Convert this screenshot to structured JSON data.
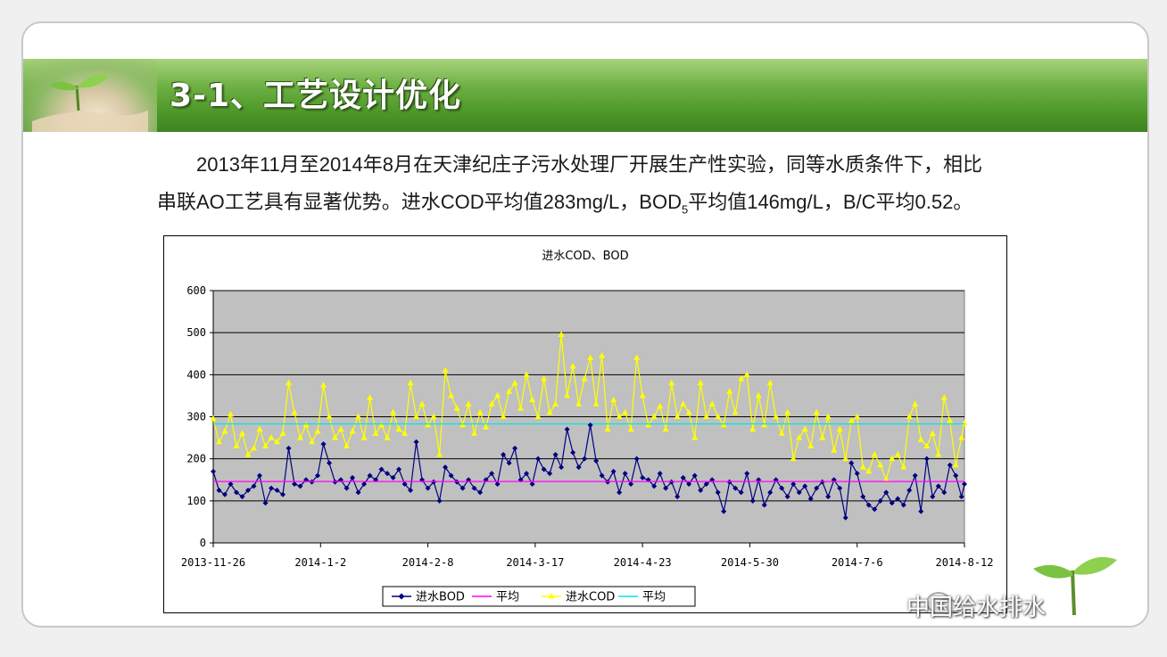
{
  "slide": {
    "title": "3-1、工艺设计优化",
    "paragraph_line1": "2013年11月至2014年8月在天津纪庄子污水处理厂开展生产性实验，同等水质条件下，相比",
    "paragraph_line2_a": "串联AO工艺具有显著优势。进水COD平均值283mg/L，BOD",
    "paragraph_line2_sub": "5",
    "paragraph_line2_b": "平均值146mg/L，B/C平均0.52。",
    "watermark": "中国给水排水"
  },
  "colors": {
    "banner": "#4f9a2a",
    "plot_bg": "#c0c0c0",
    "bod": "#000080",
    "bod_avg": "#ff00ff",
    "cod": "#ffff00",
    "cod_avg": "#00e5e5"
  },
  "chart_data": {
    "type": "line",
    "title": "进水COD、BOD",
    "xlabel": "",
    "ylabel": "",
    "ylim": [
      0,
      600
    ],
    "yticks": [
      "0",
      "100",
      "200",
      "300",
      "400",
      "500",
      "600"
    ],
    "x_tick_labels": [
      "2013-11-26",
      "2014-1-2",
      "2014-2-8",
      "2014-3-17",
      "2014-4-23",
      "2014-5-30",
      "2014-7-6",
      "2014-8-12"
    ],
    "x_start": "2013-11-26",
    "x_end": "2014-8-12",
    "grid": true,
    "legend": "bottom",
    "series": [
      {
        "name": "进水BOD",
        "marker": "diamond",
        "color": "#000080",
        "points": [
          [
            "2013-11-26",
            170
          ],
          [
            "2013-11-28",
            125
          ],
          [
            "2013-11-30",
            115
          ],
          [
            "2013-12-2",
            140
          ],
          [
            "2013-12-4",
            120
          ],
          [
            "2013-12-6",
            110
          ],
          [
            "2013-12-8",
            125
          ],
          [
            "2013-12-10",
            135
          ],
          [
            "2013-12-12",
            160
          ],
          [
            "2013-12-14",
            95
          ],
          [
            "2013-12-16",
            130
          ],
          [
            "2013-12-18",
            125
          ],
          [
            "2013-12-20",
            115
          ],
          [
            "2013-12-22",
            225
          ],
          [
            "2013-12-24",
            140
          ],
          [
            "2013-12-26",
            135
          ],
          [
            "2013-12-28",
            150
          ],
          [
            "2013-12-30",
            145
          ],
          [
            "2014-1-1",
            160
          ],
          [
            "2014-1-3",
            235
          ],
          [
            "2014-1-5",
            190
          ],
          [
            "2014-1-7",
            145
          ],
          [
            "2014-1-9",
            150
          ],
          [
            "2014-1-11",
            130
          ],
          [
            "2014-1-13",
            155
          ],
          [
            "2014-1-15",
            120
          ],
          [
            "2014-1-17",
            140
          ],
          [
            "2014-1-19",
            160
          ],
          [
            "2014-1-21",
            150
          ],
          [
            "2014-1-23",
            175
          ],
          [
            "2014-1-25",
            165
          ],
          [
            "2014-1-27",
            155
          ],
          [
            "2014-1-29",
            175
          ],
          [
            "2014-1-31",
            140
          ],
          [
            "2014-2-2",
            125
          ],
          [
            "2014-2-4",
            240
          ],
          [
            "2014-2-6",
            150
          ],
          [
            "2014-2-8",
            130
          ],
          [
            "2014-2-10",
            145
          ],
          [
            "2014-2-12",
            100
          ],
          [
            "2014-2-14",
            180
          ],
          [
            "2014-2-16",
            160
          ],
          [
            "2014-2-18",
            145
          ],
          [
            "2014-2-20",
            130
          ],
          [
            "2014-2-22",
            150
          ],
          [
            "2014-2-24",
            130
          ],
          [
            "2014-2-26",
            120
          ],
          [
            "2014-2-28",
            150
          ],
          [
            "2014-3-2",
            165
          ],
          [
            "2014-3-4",
            140
          ],
          [
            "2014-3-6",
            210
          ],
          [
            "2014-3-8",
            190
          ],
          [
            "2014-3-10",
            225
          ],
          [
            "2014-3-12",
            150
          ],
          [
            "2014-3-14",
            165
          ],
          [
            "2014-3-16",
            140
          ],
          [
            "2014-3-18",
            200
          ],
          [
            "2014-3-20",
            175
          ],
          [
            "2014-3-22",
            165
          ],
          [
            "2014-3-24",
            210
          ],
          [
            "2014-3-26",
            180
          ],
          [
            "2014-3-28",
            270
          ],
          [
            "2014-3-30",
            215
          ],
          [
            "2014-4-1",
            180
          ],
          [
            "2014-4-3",
            200
          ],
          [
            "2014-4-5",
            280
          ],
          [
            "2014-4-7",
            195
          ],
          [
            "2014-4-9",
            160
          ],
          [
            "2014-4-11",
            145
          ],
          [
            "2014-4-13",
            170
          ],
          [
            "2014-4-15",
            120
          ],
          [
            "2014-4-17",
            165
          ],
          [
            "2014-4-19",
            140
          ],
          [
            "2014-4-21",
            200
          ],
          [
            "2014-4-23",
            155
          ],
          [
            "2014-4-25",
            150
          ],
          [
            "2014-4-27",
            135
          ],
          [
            "2014-4-29",
            165
          ],
          [
            "2014-5-1",
            130
          ],
          [
            "2014-5-3",
            145
          ],
          [
            "2014-5-5",
            110
          ],
          [
            "2014-5-7",
            155
          ],
          [
            "2014-5-9",
            140
          ],
          [
            "2014-5-11",
            160
          ],
          [
            "2014-5-13",
            125
          ],
          [
            "2014-5-15",
            140
          ],
          [
            "2014-5-17",
            150
          ],
          [
            "2014-5-19",
            120
          ],
          [
            "2014-5-21",
            75
          ],
          [
            "2014-5-23",
            145
          ],
          [
            "2014-5-25",
            130
          ],
          [
            "2014-5-27",
            120
          ],
          [
            "2014-5-29",
            165
          ],
          [
            "2014-5-31",
            100
          ],
          [
            "2014-6-2",
            150
          ],
          [
            "2014-6-4",
            90
          ],
          [
            "2014-6-6",
            120
          ],
          [
            "2014-6-8",
            150
          ],
          [
            "2014-6-10",
            130
          ],
          [
            "2014-6-12",
            110
          ],
          [
            "2014-6-14",
            140
          ],
          [
            "2014-6-16",
            120
          ],
          [
            "2014-6-18",
            135
          ],
          [
            "2014-6-20",
            105
          ],
          [
            "2014-6-22",
            130
          ],
          [
            "2014-6-24",
            145
          ],
          [
            "2014-6-26",
            110
          ],
          [
            "2014-6-28",
            150
          ],
          [
            "2014-6-30",
            130
          ],
          [
            "2014-7-2",
            60
          ],
          [
            "2014-7-4",
            190
          ],
          [
            "2014-7-6",
            165
          ],
          [
            "2014-7-8",
            110
          ],
          [
            "2014-7-10",
            90
          ],
          [
            "2014-7-12",
            80
          ],
          [
            "2014-7-14",
            100
          ],
          [
            "2014-7-16",
            120
          ],
          [
            "2014-7-18",
            95
          ],
          [
            "2014-7-20",
            105
          ],
          [
            "2014-7-22",
            90
          ],
          [
            "2014-7-24",
            125
          ],
          [
            "2014-7-26",
            160
          ],
          [
            "2014-7-28",
            75
          ],
          [
            "2014-7-30",
            200
          ],
          [
            "2014-8-1",
            110
          ],
          [
            "2014-8-3",
            135
          ],
          [
            "2014-8-5",
            120
          ],
          [
            "2014-8-7",
            185
          ],
          [
            "2014-8-9",
            160
          ],
          [
            "2014-8-11",
            110
          ],
          [
            "2014-8-12",
            140
          ]
        ]
      },
      {
        "name": "平均",
        "color": "#ff00ff",
        "points": [
          [
            "2013-11-26",
            146
          ],
          [
            "2014-8-12",
            146
          ]
        ]
      },
      {
        "name": "进水COD",
        "marker": "triangle",
        "color": "#ffff00",
        "points": [
          [
            "2013-11-26",
            295
          ],
          [
            "2013-11-28",
            240
          ],
          [
            "2013-11-30",
            265
          ],
          [
            "2013-12-2",
            305
          ],
          [
            "2013-12-4",
            230
          ],
          [
            "2013-12-6",
            260
          ],
          [
            "2013-12-8",
            210
          ],
          [
            "2013-12-10",
            225
          ],
          [
            "2013-12-12",
            270
          ],
          [
            "2013-12-14",
            230
          ],
          [
            "2013-12-16",
            250
          ],
          [
            "2013-12-18",
            240
          ],
          [
            "2013-12-20",
            260
          ],
          [
            "2013-12-22",
            380
          ],
          [
            "2013-12-24",
            310
          ],
          [
            "2013-12-26",
            250
          ],
          [
            "2013-12-28",
            280
          ],
          [
            "2013-12-30",
            240
          ],
          [
            "2014-1-1",
            265
          ],
          [
            "2014-1-3",
            375
          ],
          [
            "2014-1-5",
            300
          ],
          [
            "2014-1-7",
            250
          ],
          [
            "2014-1-9",
            270
          ],
          [
            "2014-1-11",
            230
          ],
          [
            "2014-1-13",
            265
          ],
          [
            "2014-1-15",
            300
          ],
          [
            "2014-1-17",
            250
          ],
          [
            "2014-1-19",
            345
          ],
          [
            "2014-1-21",
            260
          ],
          [
            "2014-1-23",
            280
          ],
          [
            "2014-1-25",
            250
          ],
          [
            "2014-1-27",
            310
          ],
          [
            "2014-1-29",
            270
          ],
          [
            "2014-1-31",
            260
          ],
          [
            "2014-2-2",
            380
          ],
          [
            "2014-2-4",
            300
          ],
          [
            "2014-2-6",
            330
          ],
          [
            "2014-2-8",
            280
          ],
          [
            "2014-2-10",
            300
          ],
          [
            "2014-2-12",
            210
          ],
          [
            "2014-2-14",
            410
          ],
          [
            "2014-2-16",
            350
          ],
          [
            "2014-2-18",
            320
          ],
          [
            "2014-2-20",
            280
          ],
          [
            "2014-2-22",
            330
          ],
          [
            "2014-2-24",
            260
          ],
          [
            "2014-2-26",
            310
          ],
          [
            "2014-2-28",
            275
          ],
          [
            "2014-3-2",
            330
          ],
          [
            "2014-3-4",
            350
          ],
          [
            "2014-3-6",
            300
          ],
          [
            "2014-3-8",
            360
          ],
          [
            "2014-3-10",
            380
          ],
          [
            "2014-3-12",
            320
          ],
          [
            "2014-3-14",
            400
          ],
          [
            "2014-3-16",
            340
          ],
          [
            "2014-3-18",
            300
          ],
          [
            "2014-3-20",
            390
          ],
          [
            "2014-3-22",
            310
          ],
          [
            "2014-3-24",
            330
          ],
          [
            "2014-3-26",
            495
          ],
          [
            "2014-3-28",
            350
          ],
          [
            "2014-3-30",
            420
          ],
          [
            "2014-4-1",
            330
          ],
          [
            "2014-4-3",
            390
          ],
          [
            "2014-4-5",
            440
          ],
          [
            "2014-4-7",
            330
          ],
          [
            "2014-4-9",
            445
          ],
          [
            "2014-4-11",
            270
          ],
          [
            "2014-4-13",
            340
          ],
          [
            "2014-4-15",
            300
          ],
          [
            "2014-4-17",
            310
          ],
          [
            "2014-4-19",
            270
          ],
          [
            "2014-4-21",
            440
          ],
          [
            "2014-4-23",
            350
          ],
          [
            "2014-4-25",
            280
          ],
          [
            "2014-4-27",
            300
          ],
          [
            "2014-4-29",
            325
          ],
          [
            "2014-5-1",
            270
          ],
          [
            "2014-5-3",
            380
          ],
          [
            "2014-5-5",
            300
          ],
          [
            "2014-5-7",
            330
          ],
          [
            "2014-5-9",
            310
          ],
          [
            "2014-5-11",
            250
          ],
          [
            "2014-5-13",
            380
          ],
          [
            "2014-5-15",
            300
          ],
          [
            "2014-5-17",
            330
          ],
          [
            "2014-5-19",
            300
          ],
          [
            "2014-5-21",
            280
          ],
          [
            "2014-5-23",
            360
          ],
          [
            "2014-5-25",
            310
          ],
          [
            "2014-5-27",
            390
          ],
          [
            "2014-5-29",
            400
          ],
          [
            "2014-5-31",
            270
          ],
          [
            "2014-6-2",
            350
          ],
          [
            "2014-6-4",
            280
          ],
          [
            "2014-6-6",
            380
          ],
          [
            "2014-6-8",
            300
          ],
          [
            "2014-6-10",
            260
          ],
          [
            "2014-6-12",
            310
          ],
          [
            "2014-6-14",
            200
          ],
          [
            "2014-6-16",
            250
          ],
          [
            "2014-6-18",
            270
          ],
          [
            "2014-6-20",
            230
          ],
          [
            "2014-6-22",
            310
          ],
          [
            "2014-6-24",
            250
          ],
          [
            "2014-6-26",
            300
          ],
          [
            "2014-6-28",
            220
          ],
          [
            "2014-6-30",
            270
          ],
          [
            "2014-7-2",
            200
          ],
          [
            "2014-7-4",
            290
          ],
          [
            "2014-7-6",
            300
          ],
          [
            "2014-7-8",
            180
          ],
          [
            "2014-7-10",
            170
          ],
          [
            "2014-7-12",
            210
          ],
          [
            "2014-7-14",
            185
          ],
          [
            "2014-7-16",
            150
          ],
          [
            "2014-7-18",
            200
          ],
          [
            "2014-7-20",
            210
          ],
          [
            "2014-7-22",
            180
          ],
          [
            "2014-7-24",
            300
          ],
          [
            "2014-7-26",
            330
          ],
          [
            "2014-7-28",
            245
          ],
          [
            "2014-7-30",
            230
          ],
          [
            "2014-8-1",
            260
          ],
          [
            "2014-8-3",
            210
          ],
          [
            "2014-8-5",
            345
          ],
          [
            "2014-8-7",
            290
          ],
          [
            "2014-8-9",
            185
          ],
          [
            "2014-8-11",
            250
          ],
          [
            "2014-8-12",
            285
          ]
        ]
      },
      {
        "name": "平均",
        "color": "#00e5e5",
        "points": [
          [
            "2013-11-26",
            283
          ],
          [
            "2014-8-12",
            283
          ]
        ]
      }
    ]
  }
}
